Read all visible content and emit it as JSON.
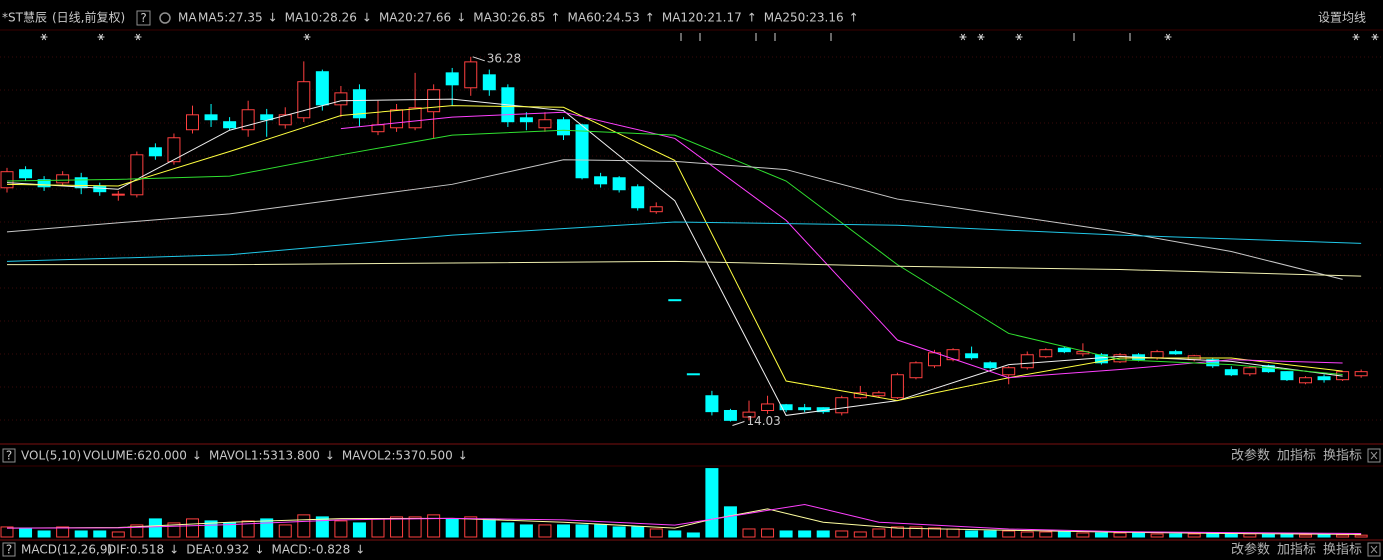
{
  "header": {
    "name": "*ST慧辰",
    "mode": "(日线,前复权)",
    "help": "?",
    "ma_label": "MA",
    "settings": "设置均线"
  },
  "panel_buttons": [
    "改参数",
    "加指标",
    "换指标"
  ],
  "chart_data": [
    {
      "type": "candlestick",
      "ylim": [
        12.9,
        37.0
      ],
      "up_color": "#ff4040",
      "down_color": "#00ffff",
      "high_label": 36.28,
      "low_label": 14.03,
      "open": [
        28.29,
        29.39,
        28.78,
        28.59,
        28.9,
        28.4,
        27.86,
        27.86,
        30.73,
        29.88,
        31.83,
        32.74,
        32.32,
        31.83,
        32.74,
        32.13,
        32.56,
        35.37,
        33.35,
        34.27,
        31.71,
        31.95,
        31.95,
        32.93,
        35.3,
        34.39,
        35.18,
        34.39,
        32.56,
        31.95,
        32.44,
        32.13,
        28.96,
        28.9,
        28.35,
        26.83,
        21.46,
        16.94,
        15.6,
        14.7,
        14.3,
        14.7,
        15.05,
        14.87,
        14.87,
        14.56,
        15.48,
        15.6,
        15.48,
        16.7,
        17.43,
        17.8,
        18.16,
        17.61,
        16.88,
        17.31,
        17.98,
        18.5,
        18.16,
        18.1,
        17.67,
        18.1,
        17.92,
        18.29,
        17.8,
        17.8,
        17.19,
        16.94,
        17.43,
        17.07,
        16.39,
        16.76,
        16.58,
        16.82
      ],
      "close": [
        29.27,
        28.9,
        28.35,
        29.08,
        28.29,
        28.05,
        27.9,
        30.3,
        30.24,
        31.34,
        32.74,
        32.44,
        31.95,
        33.05,
        32.44,
        32.74,
        34.76,
        33.35,
        34.08,
        32.56,
        32.13,
        33.05,
        33.17,
        34.27,
        34.57,
        35.97,
        34.27,
        32.32,
        32.32,
        32.44,
        31.52,
        28.9,
        28.53,
        28.17,
        27.07,
        27.13,
        21.46,
        16.94,
        14.63,
        14.1,
        14.6,
        15.1,
        14.75,
        14.75,
        14.63,
        15.48,
        15.78,
        15.78,
        16.88,
        17.61,
        18.22,
        18.41,
        17.92,
        17.31,
        17.31,
        18.1,
        18.41,
        18.29,
        18.29,
        17.61,
        18.1,
        17.8,
        18.29,
        18.16,
        18.04,
        17.43,
        16.88,
        17.31,
        17.07,
        16.58,
        16.7,
        16.58,
        17.07,
        17.07
      ],
      "high": [
        29.5,
        29.6,
        29.0,
        29.3,
        29.2,
        28.6,
        28.1,
        30.5,
        31.0,
        31.6,
        33.3,
        33.4,
        32.6,
        33.6,
        33.1,
        33.2,
        36.0,
        35.5,
        34.5,
        34.6,
        33.6,
        33.4,
        35.3,
        34.6,
        35.6,
        36.28,
        35.5,
        34.6,
        32.9,
        32.9,
        32.6,
        32.2,
        29.2,
        29.0,
        28.5,
        27.4,
        21.46,
        16.94,
        15.9,
        14.8,
        15.3,
        15.6,
        15.1,
        15.1,
        14.9,
        15.6,
        16.2,
        15.9,
        17.0,
        17.7,
        18.4,
        18.5,
        18.6,
        17.7,
        17.4,
        18.3,
        18.5,
        18.6,
        18.8,
        18.2,
        18.2,
        18.2,
        18.4,
        18.4,
        18.1,
        17.9,
        17.4,
        17.4,
        17.5,
        17.1,
        16.8,
        16.9,
        17.1,
        17.2
      ],
      "low": [
        28.0,
        28.7,
        28.1,
        28.4,
        27.9,
        27.8,
        27.5,
        27.7,
        30.0,
        29.7,
        31.6,
        32.0,
        31.8,
        31.4,
        31.4,
        31.9,
        32.3,
        33.0,
        32.6,
        32.0,
        31.5,
        31.7,
        31.8,
        31.3,
        33.3,
        33.9,
        33.9,
        32.0,
        31.8,
        31.7,
        31.2,
        28.8,
        28.3,
        28.0,
        26.9,
        26.7,
        21.46,
        16.94,
        14.4,
        14.03,
        14.1,
        14.5,
        14.6,
        14.6,
        14.5,
        14.4,
        15.4,
        15.5,
        15.4,
        16.6,
        17.3,
        17.7,
        17.8,
        17.2,
        16.3,
        17.2,
        17.9,
        18.2,
        18.0,
        17.5,
        17.6,
        17.7,
        17.8,
        18.1,
        17.7,
        17.3,
        16.8,
        16.8,
        17.0,
        16.5,
        16.3,
        16.4,
        16.5,
        16.7
      ],
      "series": [
        {
          "name": "MA5:27.35",
          "arrow": "↓",
          "color": "#f0f0f0",
          "x": [
            0,
            6,
            12,
            18,
            24,
            30,
            36,
            42,
            48,
            54,
            60,
            66,
            72
          ],
          "values": [
            28.6,
            28.2,
            31.8,
            33.6,
            33.7,
            33.0,
            27.5,
            14.4,
            15.3,
            17.5,
            18.0,
            17.7,
            16.8
          ]
        },
        {
          "name": "MA10:28.26",
          "arrow": "↓",
          "color": "#ffff40",
          "x": [
            0,
            6,
            12,
            18,
            24,
            30,
            36,
            42,
            48,
            54,
            60,
            66,
            72
          ],
          "values": [
            28.5,
            28.4,
            30.5,
            32.7,
            33.3,
            33.2,
            29.96,
            16.5,
            15.3,
            16.7,
            17.9,
            17.9,
            17.1
          ]
        },
        {
          "name": "MA20:27.66",
          "arrow": "↓",
          "color": "#ff40ff",
          "x": [
            18,
            24,
            30,
            36,
            42,
            48,
            54,
            60,
            66,
            72
          ],
          "values": [
            31.9,
            32.6,
            32.9,
            31.3,
            26.3,
            19.0,
            16.7,
            17.2,
            17.8,
            17.6
          ]
        },
        {
          "name": "MA30:26.85",
          "arrow": "↑",
          "color": "#30e030",
          "x": [
            0,
            6,
            12,
            18,
            24,
            30,
            36,
            42,
            48,
            54,
            60,
            66,
            72
          ],
          "values": [
            28.7,
            28.8,
            29.0,
            30.3,
            31.5,
            31.8,
            31.5,
            28.7,
            23.6,
            19.4,
            17.8,
            17.5,
            16.9
          ]
        },
        {
          "name": "MA60:24.53",
          "arrow": "↑",
          "color": "#c8c8c8",
          "x": [
            0,
            12,
            24,
            30,
            36,
            42,
            48,
            54,
            60,
            66,
            72
          ],
          "values": [
            25.6,
            26.7,
            28.5,
            30.0,
            29.9,
            29.4,
            27.6,
            26.6,
            25.6,
            24.4,
            22.7
          ]
        },
        {
          "name": "MA120:21.17",
          "arrow": "↑",
          "color": "#20c8e8",
          "x": [
            0,
            12,
            24,
            36,
            48,
            60,
            73
          ],
          "values": [
            23.8,
            24.2,
            25.4,
            26.2,
            26.0,
            25.4,
            24.9
          ]
        },
        {
          "name": "MA250:23.16",
          "arrow": "↑",
          "color": "#f0f0b0",
          "x": [
            0,
            12,
            24,
            36,
            48,
            60,
            73
          ],
          "values": [
            23.6,
            23.6,
            23.7,
            23.8,
            23.5,
            23.3,
            22.9
          ]
        }
      ]
    },
    {
      "type": "bar",
      "help": "?",
      "indicator": "VOL(5,10)",
      "value_label": "VOLUME:620.000",
      "value_arrow": "↓",
      "ylim": [
        0,
        24000
      ],
      "values": [
        3400,
        2720,
        2040,
        3400,
        2040,
        2040,
        1700,
        4080,
        6120,
        4760,
        6120,
        5440,
        4760,
        5440,
        6120,
        4080,
        7480,
        6800,
        5440,
        4760,
        6120,
        6800,
        6800,
        7480,
        6120,
        6800,
        6120,
        4760,
        4080,
        4080,
        4080,
        4080,
        4080,
        3400,
        3400,
        2720,
        2040,
        1360,
        23120,
        10200,
        2720,
        2720,
        2040,
        2040,
        2040,
        2040,
        1700,
        2720,
        3400,
        3400,
        3060,
        2720,
        2040,
        2040,
        2040,
        1700,
        1700,
        1700,
        1360,
        1360,
        1360,
        1360,
        1020,
        1020,
        1020,
        1360,
        1020,
        1020,
        1020,
        1020,
        680,
        680,
        680,
        620
      ],
      "series": [
        {
          "name": "MAVOL1:5313.800",
          "arrow": "↓",
          "color": "#ffffa0",
          "x": [
            0,
            6,
            12,
            18,
            24,
            30,
            36,
            38,
            41,
            44,
            48,
            54,
            60,
            66,
            73
          ],
          "values": [
            3000,
            3200,
            5000,
            6200,
            6300,
            5000,
            3000,
            6000,
            9500,
            5000,
            3000,
            2300,
            1600,
            1200,
            900
          ]
        },
        {
          "name": "MAVOL2:5370.500",
          "arrow": "↓",
          "color": "#ff40ff",
          "x": [
            0,
            6,
            12,
            18,
            24,
            30,
            36,
            40,
            43,
            47,
            54,
            60,
            66,
            73
          ],
          "values": [
            3000,
            3100,
            4200,
            5800,
            6300,
            5800,
            4000,
            8000,
            11000,
            5000,
            2700,
            1800,
            1500,
            1200
          ]
        }
      ]
    }
  ],
  "macd": {
    "help": "?",
    "indicator": "MACD(12,26,9)",
    "items": [
      {
        "text": "DIF:0.518",
        "arrow": "↓",
        "color": "#f0f0f0"
      },
      {
        "text": "DEA:0.932",
        "arrow": "↓",
        "color": "#ffff40"
      },
      {
        "text": "MACD:-0.828",
        "arrow": "↓",
        "color": "#ff40ff"
      }
    ]
  }
}
